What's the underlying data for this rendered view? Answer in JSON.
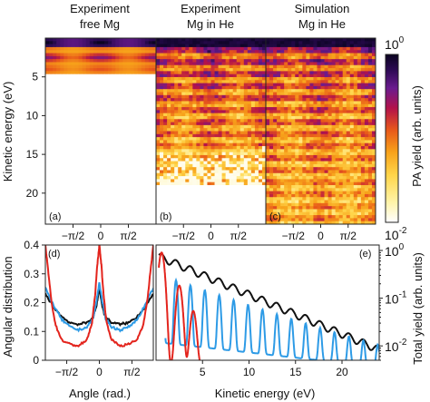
{
  "colors": {
    "black_series": "#111111",
    "blue_series": "#2e9be6",
    "red_series": "#e3241d",
    "colormap": [
      "#ffffff",
      "#fff3a8",
      "#ffd54a",
      "#f7a11a",
      "#e8581a",
      "#b3124a",
      "#6a1b8f",
      "#2b0a52",
      "#0a0420"
    ]
  },
  "chart_data": [
    {
      "type": "heatmap",
      "panel_label": "(a)",
      "title_lines": [
        "Experiment",
        "free Mg"
      ],
      "ylabel": "Kinetic energy (eV)",
      "y_ticks": [
        "5",
        "10",
        "15",
        "20"
      ],
      "x_ticks": [
        "−π/2",
        "0",
        "π/2"
      ],
      "y_range": [
        0,
        24
      ],
      "bands_eV": [
        0.6,
        2.5,
        4.0
      ],
      "band_strength": [
        1.0,
        0.55,
        0.25
      ]
    },
    {
      "type": "heatmap",
      "panel_label": "(b)",
      "title_lines": [
        "Experiment",
        "Mg in He"
      ],
      "x_ticks": [
        "−π/2",
        "0",
        "π/2"
      ],
      "y_range": [
        0,
        24
      ],
      "ring_spacing_eV": 1.55,
      "signal_extends_to_eV": 19
    },
    {
      "type": "heatmap",
      "panel_label": "(c)",
      "title_lines": [
        "Simulation",
        "Mg in He"
      ],
      "x_ticks": [
        "−π/2",
        "0",
        "π/2"
      ],
      "y_range": [
        0,
        24
      ],
      "ring_spacing_eV": 1.55,
      "signal_extends_to_eV": 24
    },
    {
      "type": "colorbar",
      "label": "PA yield (arb. units)",
      "top_label_base": "10",
      "top_label_exp": "0",
      "bottom_label_base": "10",
      "bottom_label_exp": "-2",
      "range": [
        0.01,
        1
      ],
      "scale": "log"
    },
    {
      "type": "line",
      "panel_label": "(d)",
      "xlabel": "Angle (rad.)",
      "ylabel": "Angular distribution",
      "x_ticks": [
        "−π/2",
        "0",
        "π/2"
      ],
      "y_ticks": [
        "0",
        "0.1",
        "0.2",
        "0.3",
        "0.4"
      ],
      "xlim": [
        -2.6,
        2.6
      ],
      "ylim": [
        0,
        0.4
      ],
      "series": [
        {
          "color": "black",
          "x": [
            -2.6,
            -2.2,
            -1.8,
            -1.4,
            -1.0,
            -0.6,
            -0.3,
            -0.15,
            0,
            0.15,
            0.3,
            0.6,
            1.0,
            1.4,
            1.8,
            2.2,
            2.6
          ],
          "values": [
            0.23,
            0.185,
            0.15,
            0.13,
            0.125,
            0.13,
            0.15,
            0.185,
            0.25,
            0.185,
            0.15,
            0.13,
            0.125,
            0.13,
            0.15,
            0.185,
            0.23
          ]
        },
        {
          "color": "blue",
          "x": [
            -2.6,
            -2.2,
            -1.8,
            -1.4,
            -1.0,
            -0.6,
            -0.3,
            -0.15,
            0,
            0.15,
            0.3,
            0.6,
            1.0,
            1.4,
            1.8,
            2.2,
            2.6
          ],
          "values": [
            0.25,
            0.19,
            0.14,
            0.115,
            0.105,
            0.115,
            0.145,
            0.2,
            0.27,
            0.2,
            0.145,
            0.115,
            0.105,
            0.115,
            0.14,
            0.19,
            0.25
          ]
        },
        {
          "color": "red",
          "x": [
            -2.6,
            -2.45,
            -2.3,
            -2.1,
            -1.8,
            -1.4,
            -1.0,
            -0.6,
            -0.35,
            -0.2,
            -0.1,
            0,
            0.1,
            0.2,
            0.35,
            0.6,
            1.0,
            1.4,
            1.8,
            2.1,
            2.3,
            2.45,
            2.6
          ],
          "values": [
            0.4,
            0.3,
            0.2,
            0.12,
            0.07,
            0.055,
            0.05,
            0.07,
            0.13,
            0.23,
            0.33,
            0.4,
            0.33,
            0.23,
            0.13,
            0.07,
            0.05,
            0.055,
            0.07,
            0.12,
            0.2,
            0.3,
            0.4
          ]
        }
      ]
    },
    {
      "type": "line",
      "panel_label": "(e)",
      "xlabel": "Kinetic energy (eV)",
      "ylabel": "Total yield (arb. units)",
      "x_ticks": [
        "5",
        "10",
        "15",
        "20"
      ],
      "y_ticks_base": "10",
      "y_ticks_exp": [
        "0",
        "-1",
        "-2"
      ],
      "y_scale": "log",
      "xlim": [
        0,
        24
      ],
      "ylim": [
        0.005,
        1.3
      ],
      "series": [
        {
          "color": "black",
          "model": "decay_oscillating",
          "amp": 0.8,
          "decay": 0.19,
          "ripple": 0.18,
          "period": 1.55,
          "from": 0.3,
          "to": 24
        },
        {
          "color": "blue",
          "model": "oscillating_peaks",
          "peak": 0.32,
          "floor": 0.012,
          "decay": 0.16,
          "period": 1.55,
          "from": 1.0,
          "to": 24
        },
        {
          "color": "red",
          "model": "three_peaks",
          "peaks_eV": [
            0.6,
            2.5,
            4.0
          ],
          "peak_values": [
            0.9,
            0.18,
            0.05
          ],
          "from": 0.3,
          "to": 5.9
        }
      ]
    }
  ]
}
